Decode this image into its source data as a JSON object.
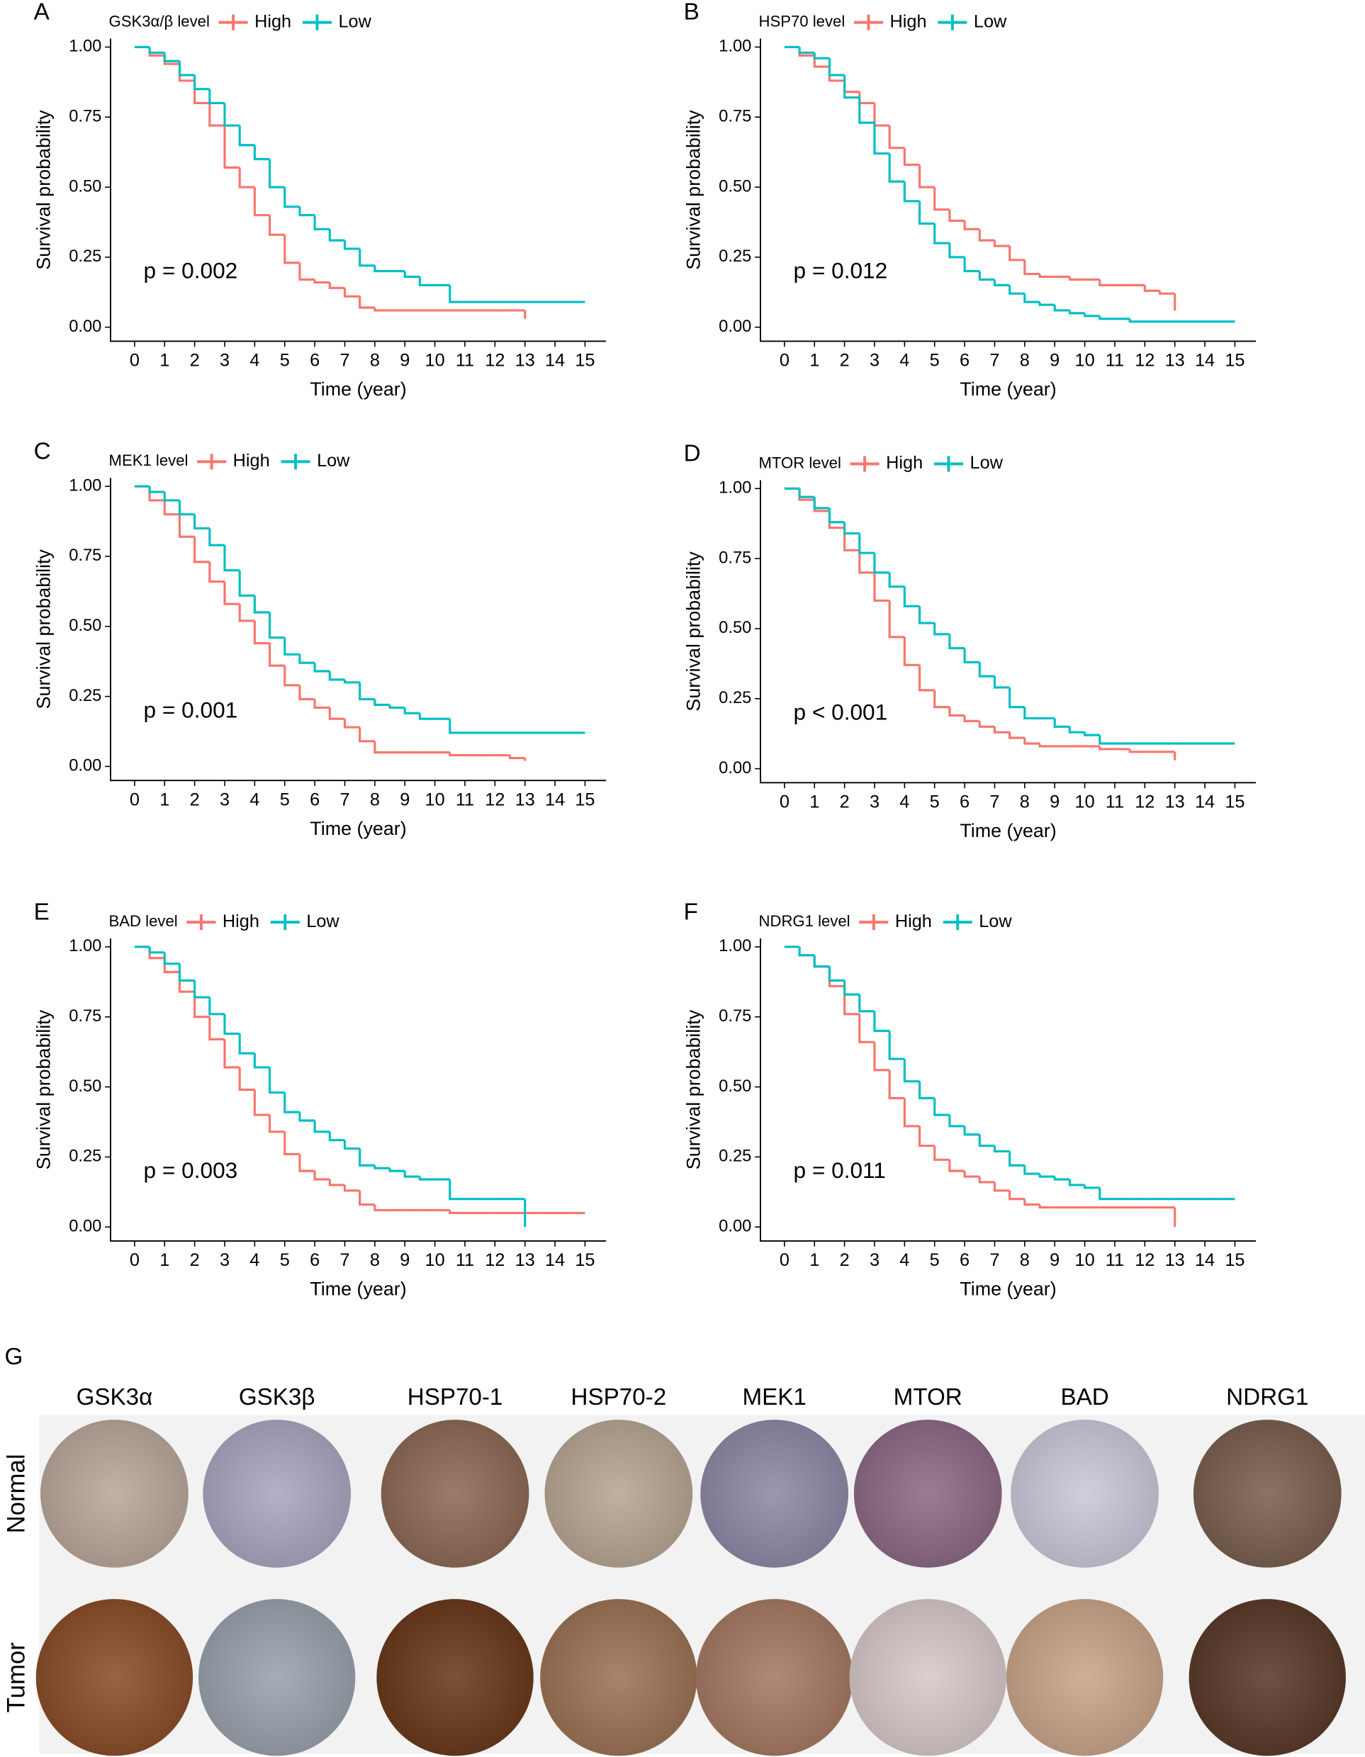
{
  "chart_data": [
    {
      "type": "line",
      "panel_label": "A",
      "legend_title": "GSK3α/β level",
      "annotation": "p = 0.002",
      "xlabel": "Time (year)",
      "ylabel": "Survival probability",
      "x": [
        0,
        0.5,
        1,
        1.5,
        2,
        2.5,
        3,
        3.5,
        4,
        4.5,
        5,
        5.5,
        6,
        6.5,
        7,
        7.5,
        8,
        8.5,
        9,
        9.5,
        10,
        10.5,
        11,
        11.5,
        12,
        12.5,
        13,
        13.5,
        14,
        14.5,
        15
      ],
      "series": [
        {
          "name": "High",
          "color": "#F8766D",
          "values": [
            1,
            0.97,
            0.94,
            0.88,
            0.8,
            0.72,
            0.57,
            0.5,
            0.4,
            0.33,
            0.23,
            0.17,
            0.16,
            0.14,
            0.11,
            0.07,
            0.06,
            0.06,
            0.06,
            0.06,
            0.06,
            0.06,
            0.06,
            0.06,
            0.06,
            0.06,
            0.03,
            null,
            null,
            null,
            null
          ]
        },
        {
          "name": "Low",
          "color": "#00BFC4",
          "values": [
            1,
            0.98,
            0.95,
            0.9,
            0.85,
            0.8,
            0.72,
            0.65,
            0.6,
            0.5,
            0.43,
            0.4,
            0.35,
            0.31,
            0.28,
            0.22,
            0.2,
            0.2,
            0.18,
            0.15,
            0.15,
            0.09,
            0.09,
            0.09,
            0.09,
            0.09,
            0.09,
            0.09,
            0.09,
            0.09,
            0.09
          ]
        }
      ],
      "xlim": [
        -0.8,
        15.7
      ],
      "xticks": [
        0,
        1,
        2,
        3,
        4,
        5,
        6,
        7,
        8,
        9,
        10,
        11,
        12,
        13,
        14,
        15
      ],
      "ylim": [
        -0.05,
        1.03
      ],
      "yticks": [
        {
          "value": 0,
          "label": "0.00"
        },
        {
          "value": 0.25,
          "label": "0.25"
        },
        {
          "value": 0.5,
          "label": "0.50"
        },
        {
          "value": 0.75,
          "label": "0.75"
        },
        {
          "value": 1,
          "label": "1.00"
        }
      ]
    },
    {
      "type": "line",
      "panel_label": "B",
      "legend_title": "HSP70 level",
      "annotation": "p = 0.012",
      "xlabel": "Time (year)",
      "ylabel": "Survival probability",
      "x": [
        0,
        0.5,
        1,
        1.5,
        2,
        2.5,
        3,
        3.5,
        4,
        4.5,
        5,
        5.5,
        6,
        6.5,
        7,
        7.5,
        8,
        8.5,
        9,
        9.5,
        10,
        10.5,
        11,
        11.5,
        12,
        12.5,
        13,
        13.5,
        14,
        14.5,
        15
      ],
      "series": [
        {
          "name": "High",
          "color": "#F8766D",
          "values": [
            1,
            0.97,
            0.93,
            0.88,
            0.84,
            0.8,
            0.72,
            0.64,
            0.58,
            0.5,
            0.42,
            0.38,
            0.35,
            0.31,
            0.29,
            0.24,
            0.19,
            0.18,
            0.18,
            0.17,
            0.17,
            0.15,
            0.15,
            0.15,
            0.13,
            0.12,
            0.06,
            null,
            null,
            null,
            null
          ]
        },
        {
          "name": "Low",
          "color": "#00BFC4",
          "values": [
            1,
            0.98,
            0.96,
            0.9,
            0.82,
            0.73,
            0.62,
            0.52,
            0.45,
            0.37,
            0.3,
            0.25,
            0.2,
            0.17,
            0.15,
            0.12,
            0.09,
            0.08,
            0.06,
            0.05,
            0.04,
            0.03,
            0.03,
            0.02,
            0.02,
            0.02,
            0.02,
            0.02,
            0.02,
            0.02,
            0.02
          ]
        }
      ],
      "xlim": [
        -0.8,
        15.7
      ],
      "xticks": [
        0,
        1,
        2,
        3,
        4,
        5,
        6,
        7,
        8,
        9,
        10,
        11,
        12,
        13,
        14,
        15
      ],
      "ylim": [
        -0.05,
        1.03
      ],
      "yticks": [
        {
          "value": 0,
          "label": "0.00"
        },
        {
          "value": 0.25,
          "label": "0.25"
        },
        {
          "value": 0.5,
          "label": "0.50"
        },
        {
          "value": 0.75,
          "label": "0.75"
        },
        {
          "value": 1,
          "label": "1.00"
        }
      ]
    },
    {
      "type": "line",
      "panel_label": "C",
      "legend_title": "MEK1 level",
      "annotation": "p = 0.001",
      "xlabel": "Time (year)",
      "ylabel": "Survival probability",
      "x": [
        0,
        0.5,
        1,
        1.5,
        2,
        2.5,
        3,
        3.5,
        4,
        4.5,
        5,
        5.5,
        6,
        6.5,
        7,
        7.5,
        8,
        8.5,
        9,
        9.5,
        10,
        10.5,
        11,
        11.5,
        12,
        12.5,
        13,
        13.5,
        14,
        14.5,
        15
      ],
      "series": [
        {
          "name": "High",
          "color": "#F8766D",
          "values": [
            1,
            0.95,
            0.9,
            0.82,
            0.73,
            0.66,
            0.58,
            0.52,
            0.44,
            0.36,
            0.29,
            0.24,
            0.21,
            0.17,
            0.14,
            0.09,
            0.05,
            0.05,
            0.05,
            0.05,
            0.05,
            0.04,
            0.04,
            0.04,
            0.04,
            0.03,
            0.02,
            null,
            null,
            null,
            null
          ]
        },
        {
          "name": "Low",
          "color": "#00BFC4",
          "values": [
            1,
            0.98,
            0.95,
            0.9,
            0.85,
            0.79,
            0.7,
            0.61,
            0.55,
            0.46,
            0.4,
            0.37,
            0.34,
            0.31,
            0.3,
            0.24,
            0.22,
            0.21,
            0.19,
            0.17,
            0.17,
            0.12,
            0.12,
            0.12,
            0.12,
            0.12,
            0.12,
            0.12,
            0.12,
            0.12,
            0.12
          ]
        }
      ],
      "xlim": [
        -0.8,
        15.7
      ],
      "xticks": [
        0,
        1,
        2,
        3,
        4,
        5,
        6,
        7,
        8,
        9,
        10,
        11,
        12,
        13,
        14,
        15
      ],
      "ylim": [
        -0.05,
        1.03
      ],
      "yticks": [
        {
          "value": 0,
          "label": "0.00"
        },
        {
          "value": 0.25,
          "label": "0.25"
        },
        {
          "value": 0.5,
          "label": "0.50"
        },
        {
          "value": 0.75,
          "label": "0.75"
        },
        {
          "value": 1,
          "label": "1.00"
        }
      ]
    },
    {
      "type": "line",
      "panel_label": "D",
      "legend_title": "MTOR level",
      "annotation": "p < 0.001",
      "xlabel": "Time (year)",
      "ylabel": "Survival probability",
      "x": [
        0,
        0.5,
        1,
        1.5,
        2,
        2.5,
        3,
        3.5,
        4,
        4.5,
        5,
        5.5,
        6,
        6.5,
        7,
        7.5,
        8,
        8.5,
        9,
        9.5,
        10,
        10.5,
        11,
        11.5,
        12,
        12.5,
        13,
        13.5,
        14,
        14.5,
        15
      ],
      "series": [
        {
          "name": "High",
          "color": "#F8766D",
          "values": [
            1,
            0.96,
            0.92,
            0.86,
            0.78,
            0.7,
            0.6,
            0.47,
            0.37,
            0.28,
            0.22,
            0.19,
            0.17,
            0.15,
            0.13,
            0.11,
            0.09,
            0.08,
            0.08,
            0.08,
            0.08,
            0.07,
            0.07,
            0.06,
            0.06,
            0.06,
            0.03,
            null,
            null,
            null,
            null
          ]
        },
        {
          "name": "Low",
          "color": "#00BFC4",
          "values": [
            1,
            0.97,
            0.93,
            0.88,
            0.84,
            0.77,
            0.7,
            0.65,
            0.58,
            0.52,
            0.48,
            0.43,
            0.38,
            0.33,
            0.29,
            0.22,
            0.18,
            0.18,
            0.15,
            0.13,
            0.12,
            0.09,
            0.09,
            0.09,
            0.09,
            0.09,
            0.09,
            0.09,
            0.09,
            0.09,
            0.09
          ]
        }
      ],
      "xlim": [
        -0.8,
        15.7
      ],
      "xticks": [
        0,
        1,
        2,
        3,
        4,
        5,
        6,
        7,
        8,
        9,
        10,
        11,
        12,
        13,
        14,
        15
      ],
      "ylim": [
        -0.05,
        1.03
      ],
      "yticks": [
        {
          "value": 0,
          "label": "0.00"
        },
        {
          "value": 0.25,
          "label": "0.25"
        },
        {
          "value": 0.5,
          "label": "0.50"
        },
        {
          "value": 0.75,
          "label": "0.75"
        },
        {
          "value": 1,
          "label": "1.00"
        }
      ]
    },
    {
      "type": "line",
      "panel_label": "E",
      "legend_title": "BAD level",
      "annotation": "p = 0.003",
      "xlabel": "Time (year)",
      "ylabel": "Survival probability",
      "x": [
        0,
        0.5,
        1,
        1.5,
        2,
        2.5,
        3,
        3.5,
        4,
        4.5,
        5,
        5.5,
        6,
        6.5,
        7,
        7.5,
        8,
        8.5,
        9,
        9.5,
        10,
        10.5,
        11,
        11.5,
        12,
        12.5,
        13,
        13.5,
        14,
        14.5,
        15
      ],
      "series": [
        {
          "name": "High",
          "color": "#F8766D",
          "values": [
            1,
            0.96,
            0.91,
            0.84,
            0.75,
            0.67,
            0.57,
            0.49,
            0.4,
            0.34,
            0.26,
            0.2,
            0.17,
            0.15,
            0.13,
            0.08,
            0.06,
            0.06,
            0.06,
            0.06,
            0.06,
            0.05,
            0.05,
            0.05,
            0.05,
            0.05,
            0.05,
            0.05,
            0.05,
            0.05,
            0.05
          ]
        },
        {
          "name": "Low",
          "color": "#00BFC4",
          "values": [
            1,
            0.98,
            0.94,
            0.88,
            0.82,
            0.76,
            0.69,
            0.62,
            0.57,
            0.48,
            0.41,
            0.38,
            0.34,
            0.31,
            0.28,
            0.22,
            0.21,
            0.2,
            0.18,
            0.17,
            0.17,
            0.1,
            0.1,
            0.1,
            0.1,
            0.1,
            0,
            null,
            null,
            null,
            null
          ]
        }
      ],
      "xlim": [
        -0.8,
        15.7
      ],
      "xticks": [
        0,
        1,
        2,
        3,
        4,
        5,
        6,
        7,
        8,
        9,
        10,
        11,
        12,
        13,
        14,
        15
      ],
      "ylim": [
        -0.05,
        1.03
      ],
      "yticks": [
        {
          "value": 0,
          "label": "0.00"
        },
        {
          "value": 0.25,
          "label": "0.25"
        },
        {
          "value": 0.5,
          "label": "0.50"
        },
        {
          "value": 0.75,
          "label": "0.75"
        },
        {
          "value": 1,
          "label": "1.00"
        }
      ]
    },
    {
      "type": "line",
      "panel_label": "F",
      "legend_title": "NDRG1 level",
      "annotation": "p = 0.011",
      "xlabel": "Time (year)",
      "ylabel": "Survival probability",
      "x": [
        0,
        0.5,
        1,
        1.5,
        2,
        2.5,
        3,
        3.5,
        4,
        4.5,
        5,
        5.5,
        6,
        6.5,
        7,
        7.5,
        8,
        8.5,
        9,
        9.5,
        10,
        10.5,
        11,
        11.5,
        12,
        12.5,
        13,
        13.5,
        14,
        14.5,
        15
      ],
      "series": [
        {
          "name": "High",
          "color": "#F8766D",
          "values": [
            1,
            0.97,
            0.93,
            0.86,
            0.76,
            0.66,
            0.56,
            0.46,
            0.36,
            0.29,
            0.24,
            0.2,
            0.18,
            0.16,
            0.13,
            0.1,
            0.08,
            0.07,
            0.07,
            0.07,
            0.07,
            0.07,
            0.07,
            0.07,
            0.07,
            0.07,
            0,
            null,
            null,
            null,
            null
          ]
        },
        {
          "name": "Low",
          "color": "#00BFC4",
          "values": [
            1,
            0.97,
            0.93,
            0.88,
            0.83,
            0.77,
            0.7,
            0.6,
            0.52,
            0.46,
            0.4,
            0.36,
            0.33,
            0.29,
            0.27,
            0.22,
            0.19,
            0.18,
            0.17,
            0.15,
            0.14,
            0.1,
            0.1,
            0.1,
            0.1,
            0.1,
            0.1,
            0.1,
            0.1,
            0.1,
            0.1
          ]
        }
      ],
      "xlim": [
        -0.8,
        15.7
      ],
      "xticks": [
        0,
        1,
        2,
        3,
        4,
        5,
        6,
        7,
        8,
        9,
        10,
        11,
        12,
        13,
        14,
        15
      ],
      "ylim": [
        -0.05,
        1.03
      ],
      "yticks": [
        {
          "value": 0,
          "label": "0.00"
        },
        {
          "value": 0.25,
          "label": "0.25"
        },
        {
          "value": 0.5,
          "label": "0.50"
        },
        {
          "value": 0.75,
          "label": "0.75"
        },
        {
          "value": 1,
          "label": "1.00"
        }
      ]
    }
  ],
  "tissue_panel": {
    "label": "G",
    "columns": [
      "GSK3α",
      "GSK3β",
      "HSP70-1",
      "HSP70-2",
      "MEK1",
      "MTOR",
      "BAD",
      "NDRG1"
    ],
    "rows": [
      "Normal",
      "Tumor"
    ]
  }
}
